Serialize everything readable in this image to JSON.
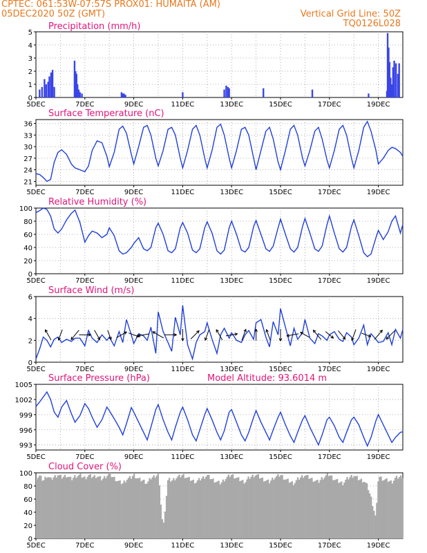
{
  "header": {
    "line1_left": "CPTEC:   061:53W-07:57S   PROX01: HUMAITA (AM)",
    "line2_left": "05DEC2020 50Z (GMT)",
    "line2_right": "Vertical Grid Line: 50Z",
    "line3_right": "TQ0126L028"
  },
  "colors": {
    "header": "#e8781e",
    "title": "#e0157a",
    "series": "#1f3fd9",
    "bars": "#3a45e6",
    "cloud": "#a9a9a9",
    "arrow": "#000000",
    "grid": "#999999"
  },
  "date_labels": [
    "5DEC",
    "7DEC",
    "9DEC",
    "11DEC",
    "13DEC",
    "15DEC",
    "17DEC",
    "19DEC"
  ],
  "chart_data": [
    {
      "id": "precip",
      "type": "bar",
      "title": "Precipitation (mm/h)",
      "ylim": [
        0,
        5
      ],
      "yticks": [
        "0",
        "1",
        "2",
        "3",
        "4",
        "5"
      ],
      "xlim_days": [
        5,
        20
      ],
      "x": [
        5.15,
        5.25,
        5.35,
        5.42,
        5.5,
        5.55,
        5.62,
        5.68,
        5.75,
        6.58,
        6.62,
        6.66,
        6.7,
        6.75,
        6.8,
        6.88,
        8.5,
        8.55,
        8.6,
        8.66,
        11.0,
        12.7,
        12.78,
        12.85,
        12.9,
        14.3,
        16.3,
        18.6,
        19.35,
        19.38,
        19.42,
        19.46,
        19.5,
        19.55,
        19.6,
        19.65,
        19.72,
        19.8,
        19.85
      ],
      "values": [
        0.6,
        0.8,
        1.4,
        1.0,
        1.2,
        1.6,
        1.9,
        2.1,
        0.8,
        2.8,
        2.0,
        1.8,
        1.0,
        0.6,
        0.4,
        0.3,
        0.4,
        0.3,
        0.3,
        0.2,
        0.4,
        0.6,
        0.9,
        0.8,
        0.7,
        0.7,
        0.6,
        0.3,
        0.5,
        4.9,
        3.8,
        2.7,
        1.5,
        1.0,
        2.3,
        2.8,
        2.6,
        1.8,
        2.6
      ]
    },
    {
      "id": "temp",
      "type": "line",
      "title": "Surface Temperature (nC)",
      "ylim": [
        20,
        37
      ],
      "yticks": [
        "21",
        "24",
        "27",
        "30",
        "33",
        "36"
      ],
      "xlim_days": [
        5,
        20
      ],
      "x": [
        5.0,
        5.15,
        5.3,
        5.45,
        5.6,
        5.75,
        5.9,
        6.05,
        6.25,
        6.45,
        6.6,
        6.8,
        7.0,
        7.15,
        7.3,
        7.5,
        7.7,
        7.9,
        8.0,
        8.2,
        8.4,
        8.55,
        8.7,
        8.9,
        9.0,
        9.2,
        9.4,
        9.55,
        9.7,
        9.9,
        10.0,
        10.2,
        10.4,
        10.55,
        10.7,
        10.9,
        11.0,
        11.2,
        11.4,
        11.55,
        11.7,
        11.9,
        12.0,
        12.2,
        12.4,
        12.55,
        12.7,
        12.9,
        13.0,
        13.2,
        13.4,
        13.55,
        13.7,
        13.9,
        14.0,
        14.2,
        14.4,
        14.55,
        14.7,
        14.9,
        15.0,
        15.2,
        15.4,
        15.55,
        15.7,
        15.9,
        16.0,
        16.2,
        16.4,
        16.55,
        16.7,
        16.9,
        17.0,
        17.2,
        17.4,
        17.55,
        17.7,
        17.9,
        18.0,
        18.2,
        18.4,
        18.55,
        18.7,
        18.9,
        19.0,
        19.2,
        19.4,
        19.55,
        19.7,
        19.9,
        20.0
      ],
      "values": [
        23.0,
        22.8,
        22.0,
        21.0,
        21.5,
        26.0,
        28.5,
        29.2,
        28.0,
        25.5,
        24.5,
        24.0,
        23.5,
        25.0,
        29.0,
        31.5,
        31.0,
        27.5,
        24.8,
        28.5,
        34.5,
        35.3,
        33.5,
        28.0,
        25.5,
        30.0,
        35.0,
        35.5,
        33.0,
        27.0,
        25.0,
        29.0,
        34.5,
        35.0,
        33.0,
        27.0,
        24.5,
        29.0,
        34.5,
        35.5,
        33.0,
        27.0,
        24.5,
        29.0,
        35.0,
        35.8,
        33.0,
        27.0,
        24.5,
        29.0,
        34.5,
        35.0,
        33.0,
        27.0,
        24.0,
        29.0,
        34.0,
        35.0,
        32.0,
        26.0,
        24.0,
        29.0,
        34.5,
        35.5,
        33.0,
        27.0,
        25.0,
        29.0,
        34.0,
        35.0,
        32.0,
        26.5,
        24.5,
        29.0,
        34.5,
        35.5,
        33.0,
        27.0,
        24.5,
        29.0,
        35.0,
        36.5,
        34.0,
        29.0,
        25.5,
        27.0,
        29.0,
        29.8,
        29.5,
        28.5,
        27.5
      ]
    },
    {
      "id": "rh",
      "type": "line",
      "title": "Relative Humidity (%)",
      "ylim": [
        0,
        100
      ],
      "yticks": [
        "0",
        "20",
        "40",
        "60",
        "80",
        "100"
      ],
      "xlim_days": [
        5,
        20
      ],
      "x": [
        5.0,
        5.15,
        5.3,
        5.45,
        5.6,
        5.75,
        5.9,
        6.05,
        6.25,
        6.45,
        6.6,
        6.8,
        7.0,
        7.15,
        7.3,
        7.5,
        7.7,
        7.9,
        8.0,
        8.2,
        8.4,
        8.55,
        8.7,
        8.9,
        9.0,
        9.2,
        9.4,
        9.55,
        9.7,
        9.9,
        10.0,
        10.2,
        10.4,
        10.55,
        10.7,
        10.9,
        11.0,
        11.2,
        11.4,
        11.55,
        11.7,
        11.9,
        12.0,
        12.2,
        12.4,
        12.55,
        12.7,
        12.9,
        13.0,
        13.2,
        13.4,
        13.55,
        13.7,
        13.9,
        14.0,
        14.2,
        14.4,
        14.55,
        14.7,
        14.9,
        15.0,
        15.2,
        15.4,
        15.55,
        15.7,
        15.9,
        16.0,
        16.2,
        16.4,
        16.55,
        16.7,
        16.9,
        17.0,
        17.2,
        17.4,
        17.55,
        17.7,
        17.9,
        18.0,
        18.2,
        18.4,
        18.55,
        18.7,
        18.9,
        19.0,
        19.2,
        19.4,
        19.55,
        19.7,
        19.9,
        20.0
      ],
      "values": [
        93,
        96,
        100,
        98,
        88,
        68,
        62,
        68,
        82,
        92,
        97,
        78,
        48,
        58,
        65,
        62,
        55,
        60,
        70,
        58,
        35,
        30,
        32,
        40,
        46,
        55,
        38,
        35,
        40,
        70,
        77,
        60,
        35,
        32,
        38,
        70,
        78,
        62,
        36,
        32,
        38,
        70,
        79,
        62,
        35,
        30,
        36,
        70,
        80,
        60,
        36,
        33,
        40,
        72,
        81,
        60,
        38,
        34,
        42,
        70,
        83,
        60,
        38,
        33,
        40,
        72,
        84,
        62,
        38,
        34,
        42,
        75,
        88,
        62,
        38,
        33,
        40,
        72,
        82,
        58,
        32,
        26,
        30,
        55,
        66,
        52,
        64,
        80,
        88,
        62,
        75
      ]
    },
    {
      "id": "wind",
      "type": "line",
      "title": "Surface Wind (m/s)",
      "ylim": [
        0,
        6
      ],
      "yticks": [
        "0",
        "2",
        "4",
        "6"
      ],
      "xlim_days": [
        5,
        20
      ],
      "x": [
        5.0,
        5.15,
        5.3,
        5.45,
        5.6,
        5.75,
        5.9,
        6.05,
        6.25,
        6.45,
        6.6,
        6.8,
        7.0,
        7.15,
        7.3,
        7.5,
        7.7,
        7.9,
        8.0,
        8.2,
        8.4,
        8.55,
        8.7,
        8.9,
        9.0,
        9.2,
        9.4,
        9.55,
        9.7,
        9.9,
        10.0,
        10.2,
        10.4,
        10.55,
        10.7,
        10.9,
        11.0,
        11.2,
        11.4,
        11.55,
        11.7,
        11.9,
        12.0,
        12.2,
        12.4,
        12.55,
        12.7,
        12.9,
        13.0,
        13.2,
        13.4,
        13.55,
        13.7,
        13.9,
        14.0,
        14.2,
        14.4,
        14.55,
        14.7,
        14.9,
        15.0,
        15.2,
        15.4,
        15.55,
        15.7,
        15.9,
        16.0,
        16.2,
        16.4,
        16.55,
        16.7,
        16.9,
        17.0,
        17.2,
        17.4,
        17.55,
        17.7,
        17.9,
        18.0,
        18.2,
        18.4,
        18.55,
        18.7,
        18.9,
        19.0,
        19.2,
        19.4,
        19.55,
        19.7,
        19.9,
        20.0
      ],
      "values": [
        0.3,
        1.2,
        2.3,
        2.0,
        1.4,
        2.1,
        2.3,
        1.8,
        2.1,
        1.9,
        2.2,
        2.2,
        1.5,
        2.9,
        2.2,
        1.8,
        2.5,
        2.0,
        2.3,
        1.5,
        2.8,
        1.8,
        3.9,
        2.5,
        1.7,
        2.6,
        2.4,
        2.0,
        3.2,
        0.8,
        4.6,
        2.8,
        1.8,
        1.0,
        4.1,
        2.5,
        5.2,
        1.6,
        0.3,
        1.8,
        2.5,
        2.8,
        3.6,
        2.1,
        0.8,
        2.5,
        3.1,
        2.2,
        2.7,
        2.0,
        1.8,
        2.5,
        2.9,
        2.1,
        3.6,
        3.9,
        2.3,
        1.4,
        3.7,
        2.5,
        4.9,
        3.2,
        1.5,
        3.1,
        2.1,
        2.7,
        3.9,
        2.2,
        1.7,
        2.6,
        2.4,
        2.0,
        2.5,
        2.8,
        2.1,
        1.9,
        2.7,
        2.3,
        1.6,
        2.2,
        3.4,
        1.6,
        2.6,
        2.1,
        1.8,
        1.9,
        2.7,
        1.6,
        3.0,
        2.2,
        3.0
      ]
    },
    {
      "id": "pressure",
      "type": "line",
      "title": "Surface Pressure (hPa)",
      "annotation": "Model Altitude: 93.6014 m",
      "ylim": [
        992,
        1005
      ],
      "yticks": [
        "993",
        "996",
        "999",
        "1002",
        "1005"
      ],
      "xlim_days": [
        5,
        20
      ],
      "x": [
        5.0,
        5.15,
        5.3,
        5.45,
        5.6,
        5.75,
        5.9,
        6.05,
        6.25,
        6.45,
        6.6,
        6.8,
        7.0,
        7.15,
        7.3,
        7.5,
        7.7,
        7.9,
        8.0,
        8.2,
        8.4,
        8.55,
        8.7,
        8.9,
        9.0,
        9.2,
        9.4,
        9.55,
        9.7,
        9.9,
        10.0,
        10.2,
        10.4,
        10.55,
        10.7,
        10.9,
        11.0,
        11.2,
        11.4,
        11.55,
        11.7,
        11.9,
        12.0,
        12.2,
        12.4,
        12.55,
        12.7,
        12.9,
        13.0,
        13.2,
        13.4,
        13.55,
        13.7,
        13.9,
        14.0,
        14.2,
        14.4,
        14.55,
        14.7,
        14.9,
        15.0,
        15.2,
        15.4,
        15.55,
        15.7,
        15.9,
        16.0,
        16.2,
        16.4,
        16.55,
        16.7,
        16.9,
        17.0,
        17.2,
        17.4,
        17.55,
        17.7,
        17.9,
        18.0,
        18.2,
        18.4,
        18.55,
        18.7,
        18.9,
        19.0,
        19.2,
        19.4,
        19.55,
        19.7,
        19.9,
        20.0
      ],
      "values": [
        1000.6,
        1001.5,
        1002.5,
        1003.5,
        1002.0,
        999.5,
        998.5,
        1000.5,
        1001.8,
        999.2,
        997.5,
        998.8,
        1001.2,
        1000.2,
        998.5,
        996.5,
        998.0,
        1000.5,
        999.8,
        998.2,
        996.5,
        995.0,
        997.2,
        1000.4,
        999.5,
        997.5,
        995.5,
        994.0,
        996.5,
        1000.0,
        1001.0,
        998.0,
        995.5,
        994.0,
        996.5,
        999.5,
        1000.5,
        998.0,
        995.0,
        993.8,
        996.0,
        999.0,
        1000.2,
        998.0,
        995.5,
        994.0,
        995.8,
        999.5,
        1000.0,
        997.5,
        995.0,
        993.8,
        995.5,
        998.5,
        999.8,
        997.5,
        995.5,
        994.0,
        996.0,
        998.5,
        999.5,
        997.0,
        994.8,
        993.5,
        995.5,
        998.0,
        998.8,
        996.5,
        994.5,
        993.0,
        995.0,
        998.0,
        998.5,
        996.8,
        994.5,
        993.5,
        995.5,
        998.0,
        998.5,
        997.0,
        994.5,
        992.8,
        994.5,
        997.8,
        999.0,
        997.0,
        995.0,
        993.5,
        994.5,
        995.5,
        995.6
      ]
    },
    {
      "id": "cloud",
      "type": "area",
      "title": "Cloud Cover (%)",
      "ylim": [
        0,
        100
      ],
      "yticks": [
        "0",
        "20",
        "40",
        "60",
        "80",
        "100"
      ],
      "xlim_days": [
        5,
        20
      ],
      "x": [
        5.0,
        5.15,
        5.3,
        5.45,
        5.6,
        5.75,
        5.9,
        6.05,
        6.25,
        6.45,
        6.6,
        6.8,
        7.0,
        7.15,
        7.3,
        7.5,
        7.7,
        7.9,
        8.0,
        8.2,
        8.4,
        8.55,
        8.7,
        8.9,
        9.0,
        9.2,
        9.4,
        9.55,
        9.7,
        9.9,
        10.0,
        10.2,
        10.4,
        10.55,
        10.7,
        10.9,
        11.0,
        11.2,
        11.4,
        11.55,
        11.7,
        11.9,
        12.0,
        12.2,
        12.4,
        12.55,
        12.7,
        12.9,
        13.0,
        13.2,
        13.4,
        13.55,
        13.7,
        13.9,
        14.0,
        14.2,
        14.4,
        14.55,
        14.7,
        14.9,
        15.0,
        15.2,
        15.4,
        15.55,
        15.7,
        15.9,
        16.0,
        16.2,
        16.4,
        16.55,
        16.7,
        16.9,
        17.0,
        17.2,
        17.4,
        17.55,
        17.7,
        17.9,
        18.0,
        18.2,
        18.4,
        18.55,
        18.7,
        18.9,
        19.0,
        19.2,
        19.4,
        19.55,
        19.7,
        19.9,
        20.0
      ],
      "values": [
        92,
        95,
        88,
        96,
        90,
        94,
        97,
        93,
        96,
        90,
        95,
        96,
        92,
        96,
        94,
        95,
        90,
        96,
        98,
        92,
        86,
        84,
        90,
        93,
        97,
        90,
        88,
        84,
        92,
        96,
        98,
        14,
        90,
        88,
        92,
        95,
        97,
        92,
        88,
        86,
        90,
        94,
        96,
        90,
        86,
        84,
        90,
        95,
        97,
        92,
        88,
        86,
        92,
        96,
        97,
        92,
        88,
        86,
        92,
        95,
        97,
        90,
        86,
        84,
        90,
        95,
        96,
        92,
        88,
        86,
        92,
        96,
        97,
        90,
        86,
        84,
        90,
        95,
        96,
        90,
        88,
        80,
        62,
        30,
        95,
        90,
        88,
        86,
        92,
        94,
        95
      ]
    }
  ],
  "wind_arrows": {
    "x_days": [
      5.5,
      6.0,
      6.6,
      7.0,
      7.5,
      8.0,
      8.5,
      9.0,
      9.4,
      10.0,
      10.5,
      11.0,
      11.5,
      12.0,
      12.5,
      13.0,
      13.5,
      14.0,
      14.5,
      15.0,
      15.5,
      16.0,
      16.5,
      17.0,
      17.5,
      18.0,
      18.5,
      19.0,
      19.5
    ],
    "speed_ms": [
      2.7,
      2.5,
      2.9,
      2.7,
      2.4,
      2.1,
      2.7,
      2.5,
      2.7,
      3.0,
      2.8,
      2.7,
      2.7,
      2.6,
      2.8,
      2.7,
      2.7,
      2.6,
      2.5,
      2.8,
      2.8,
      2.2,
      2.9,
      2.2,
      2.5,
      2.7,
      2.0,
      2.9,
      2.9
    ],
    "dir_deg": [
      330,
      200,
      220,
      90,
      150,
      160,
      60,
      110,
      260,
      300,
      90,
      180,
      45,
      200,
      330,
      80,
      20,
      0,
      340,
      180,
      260,
      300,
      320,
      130,
      140,
      200,
      110,
      40,
      225
    ]
  }
}
